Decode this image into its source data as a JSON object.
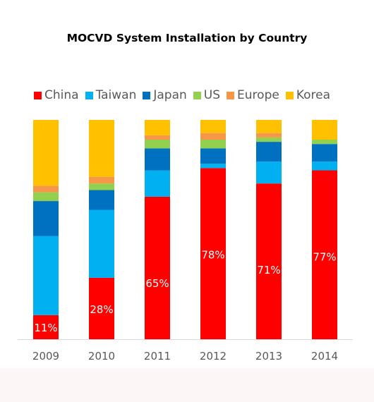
{
  "chart_data": {
    "type": "bar",
    "stacked": true,
    "normalized": true,
    "title": "MOCVD System Installation by Country",
    "categories": [
      "2009",
      "2010",
      "2011",
      "2012",
      "2013",
      "2014"
    ],
    "series": [
      {
        "name": "China",
        "color": "#ff0000",
        "values": [
          11,
          28,
          65,
          78,
          71,
          77
        ]
      },
      {
        "name": "Taiwan",
        "color": "#00b0f0",
        "values": [
          36,
          31,
          12,
          2,
          10,
          4
        ]
      },
      {
        "name": "Japan",
        "color": "#0070c0",
        "values": [
          16,
          9,
          10,
          7,
          9,
          8
        ]
      },
      {
        "name": "US",
        "color": "#92d050",
        "values": [
          4,
          3,
          4,
          4,
          2,
          2
        ]
      },
      {
        "name": "Europe",
        "color": "#f79646",
        "values": [
          3,
          3,
          2,
          3,
          2,
          0
        ]
      },
      {
        "name": "Korea",
        "color": "#ffc000",
        "values": [
          30,
          26,
          7,
          6,
          6,
          9
        ]
      }
    ],
    "data_labels": [
      "11%",
      "28%",
      "65%",
      "78%",
      "71%",
      "77%"
    ],
    "ylim": [
      0,
      100
    ],
    "grid": false,
    "legend_position": "top"
  }
}
